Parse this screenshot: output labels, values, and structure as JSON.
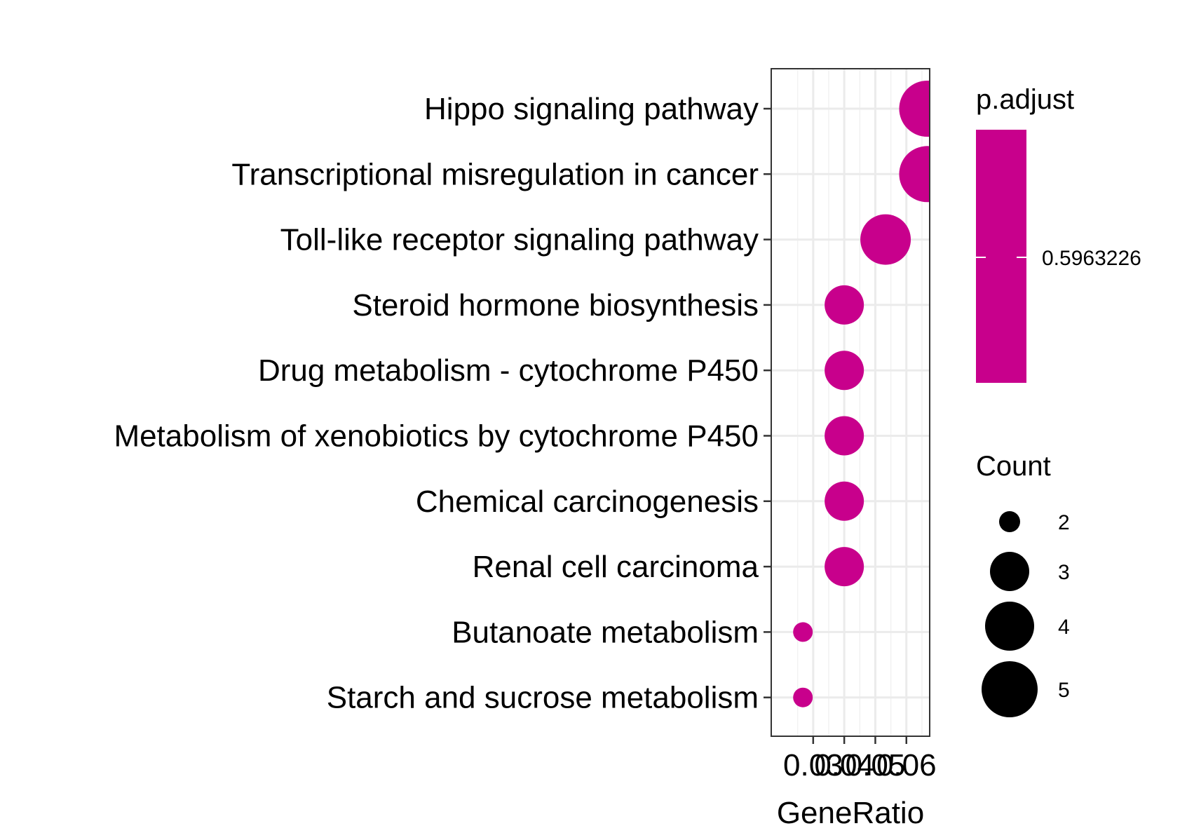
{
  "chart_data": {
    "type": "scatter",
    "subtype": "dot-plot",
    "xlabel": "GeneRatio",
    "ylabel": "",
    "xlim": [
      0.0165,
      0.0675
    ],
    "x_ticks": [
      {
        "value": 0.03,
        "label": "0.03"
      },
      {
        "value": 0.04,
        "label": "0.04"
      },
      {
        "value": 0.05,
        "label": "0.05"
      },
      {
        "value": 0.06,
        "label": "0.06"
      }
    ],
    "grid": true,
    "point_color": "#c8008c",
    "categories": [
      "Hippo signaling pathway",
      "Transcriptional misregulation in cancer",
      "Toll-like receptor signaling pathway",
      "Steroid hormone biosynthesis",
      "Drug metabolism - cytochrome P450",
      "Metabolism of xenobiotics by cytochrome P450",
      "Chemical carcinogenesis",
      "Renal cell carcinoma",
      "Butanoate metabolism",
      "Starch and sucrose metabolism"
    ],
    "points": [
      {
        "category": "Hippo signaling pathway",
        "x": 0.0667,
        "count": 5,
        "p_adjust": 0.5963226
      },
      {
        "category": "Transcriptional misregulation in cancer",
        "x": 0.0667,
        "count": 5,
        "p_adjust": 0.5963226
      },
      {
        "category": "Toll-like receptor signaling pathway",
        "x": 0.0533,
        "count": 4,
        "p_adjust": 0.5963226
      },
      {
        "category": "Steroid hormone biosynthesis",
        "x": 0.04,
        "count": 3,
        "p_adjust": 0.5963226
      },
      {
        "category": "Drug metabolism - cytochrome P450",
        "x": 0.04,
        "count": 3,
        "p_adjust": 0.5963226
      },
      {
        "category": "Metabolism of xenobiotics by cytochrome P450",
        "x": 0.04,
        "count": 3,
        "p_adjust": 0.5963226
      },
      {
        "category": "Chemical carcinogenesis",
        "x": 0.04,
        "count": 3,
        "p_adjust": 0.5963226
      },
      {
        "category": "Renal cell carcinoma",
        "x": 0.04,
        "count": 3,
        "p_adjust": 0.5963226
      },
      {
        "category": "Butanoate metabolism",
        "x": 0.0267,
        "count": 2,
        "p_adjust": 0.5963226
      },
      {
        "category": "Starch and sucrose metabolism",
        "x": 0.0267,
        "count": 2,
        "p_adjust": 0.5963226
      }
    ],
    "legend_color": {
      "title": "p.adjust",
      "label": "0.5963226",
      "color": "#c8008c",
      "placement": "right"
    },
    "legend_size": {
      "title": "Count",
      "placement": "right",
      "entries": [
        {
          "value": 2,
          "label": "2"
        },
        {
          "value": 3,
          "label": "3"
        },
        {
          "value": 4,
          "label": "4"
        },
        {
          "value": 5,
          "label": "5"
        }
      ]
    }
  }
}
